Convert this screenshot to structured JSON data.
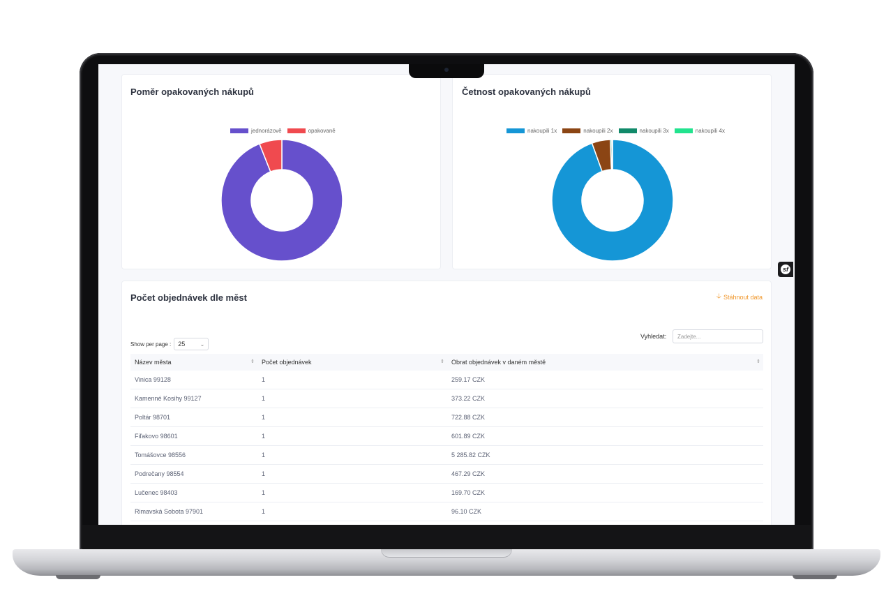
{
  "repeat_ratio": {
    "title": "Poměr opakovaných nákupů",
    "legend": [
      {
        "label": "jednorázově",
        "color": "#6650cc"
      },
      {
        "label": "opakovaně",
        "color": "#f04a4f"
      }
    ],
    "chart_data": {
      "type": "pie",
      "labels": [
        "jednorázově",
        "opakovaně"
      ],
      "values": [
        94,
        6
      ],
      "colors": [
        "#6650cc",
        "#f04a4f"
      ]
    }
  },
  "repeat_frequency": {
    "title": "Četnost opakovaných nákupů",
    "legend": [
      {
        "label": "nakoupili 1x",
        "color": "#1596d6"
      },
      {
        "label": "nakoupili 2x",
        "color": "#8b4514"
      },
      {
        "label": "nakoupili 3x",
        "color": "#118a6a"
      },
      {
        "label": "nakoupili 4x",
        "color": "#22e38e"
      }
    ],
    "chart_data": {
      "type": "pie",
      "labels": [
        "nakoupili 1x",
        "nakoupili 2x",
        "nakoupili 3x",
        "nakoupili 4x"
      ],
      "values": [
        94.5,
        4.9,
        0.4,
        0.2
      ],
      "colors": [
        "#1596d6",
        "#8b4514",
        "#118a6a",
        "#22e38e"
      ]
    }
  },
  "orders_by_city": {
    "title": "Počet objednávek dle měst",
    "download_label": "Stáhnout data",
    "show_per_page_label": "Show per page :",
    "show_per_page_value": "25",
    "search_label": "Vyhledat:",
    "search_placeholder": "Zadejte...",
    "columns": [
      "Název města",
      "Počet objednávek",
      "Obrat objednávek v daném městě"
    ],
    "rows": [
      [
        "Vinica 99128",
        "1",
        "259.17 CZK"
      ],
      [
        "Kamenné Kosihy 99127",
        "1",
        "373.22 CZK"
      ],
      [
        "Poltár 98701",
        "1",
        "722.88 CZK"
      ],
      [
        "Fiľakovo 98601",
        "1",
        "601.89 CZK"
      ],
      [
        "Tomášovce 98556",
        "1",
        "5 285.82 CZK"
      ],
      [
        "Podrečany 98554",
        "1",
        "467.29 CZK"
      ],
      [
        "Lučenec 98403",
        "1",
        "169.70 CZK"
      ],
      [
        "Rimavská Sobota 97901",
        "1",
        "96.10 CZK"
      ]
    ]
  },
  "symfony_badge": "sf"
}
